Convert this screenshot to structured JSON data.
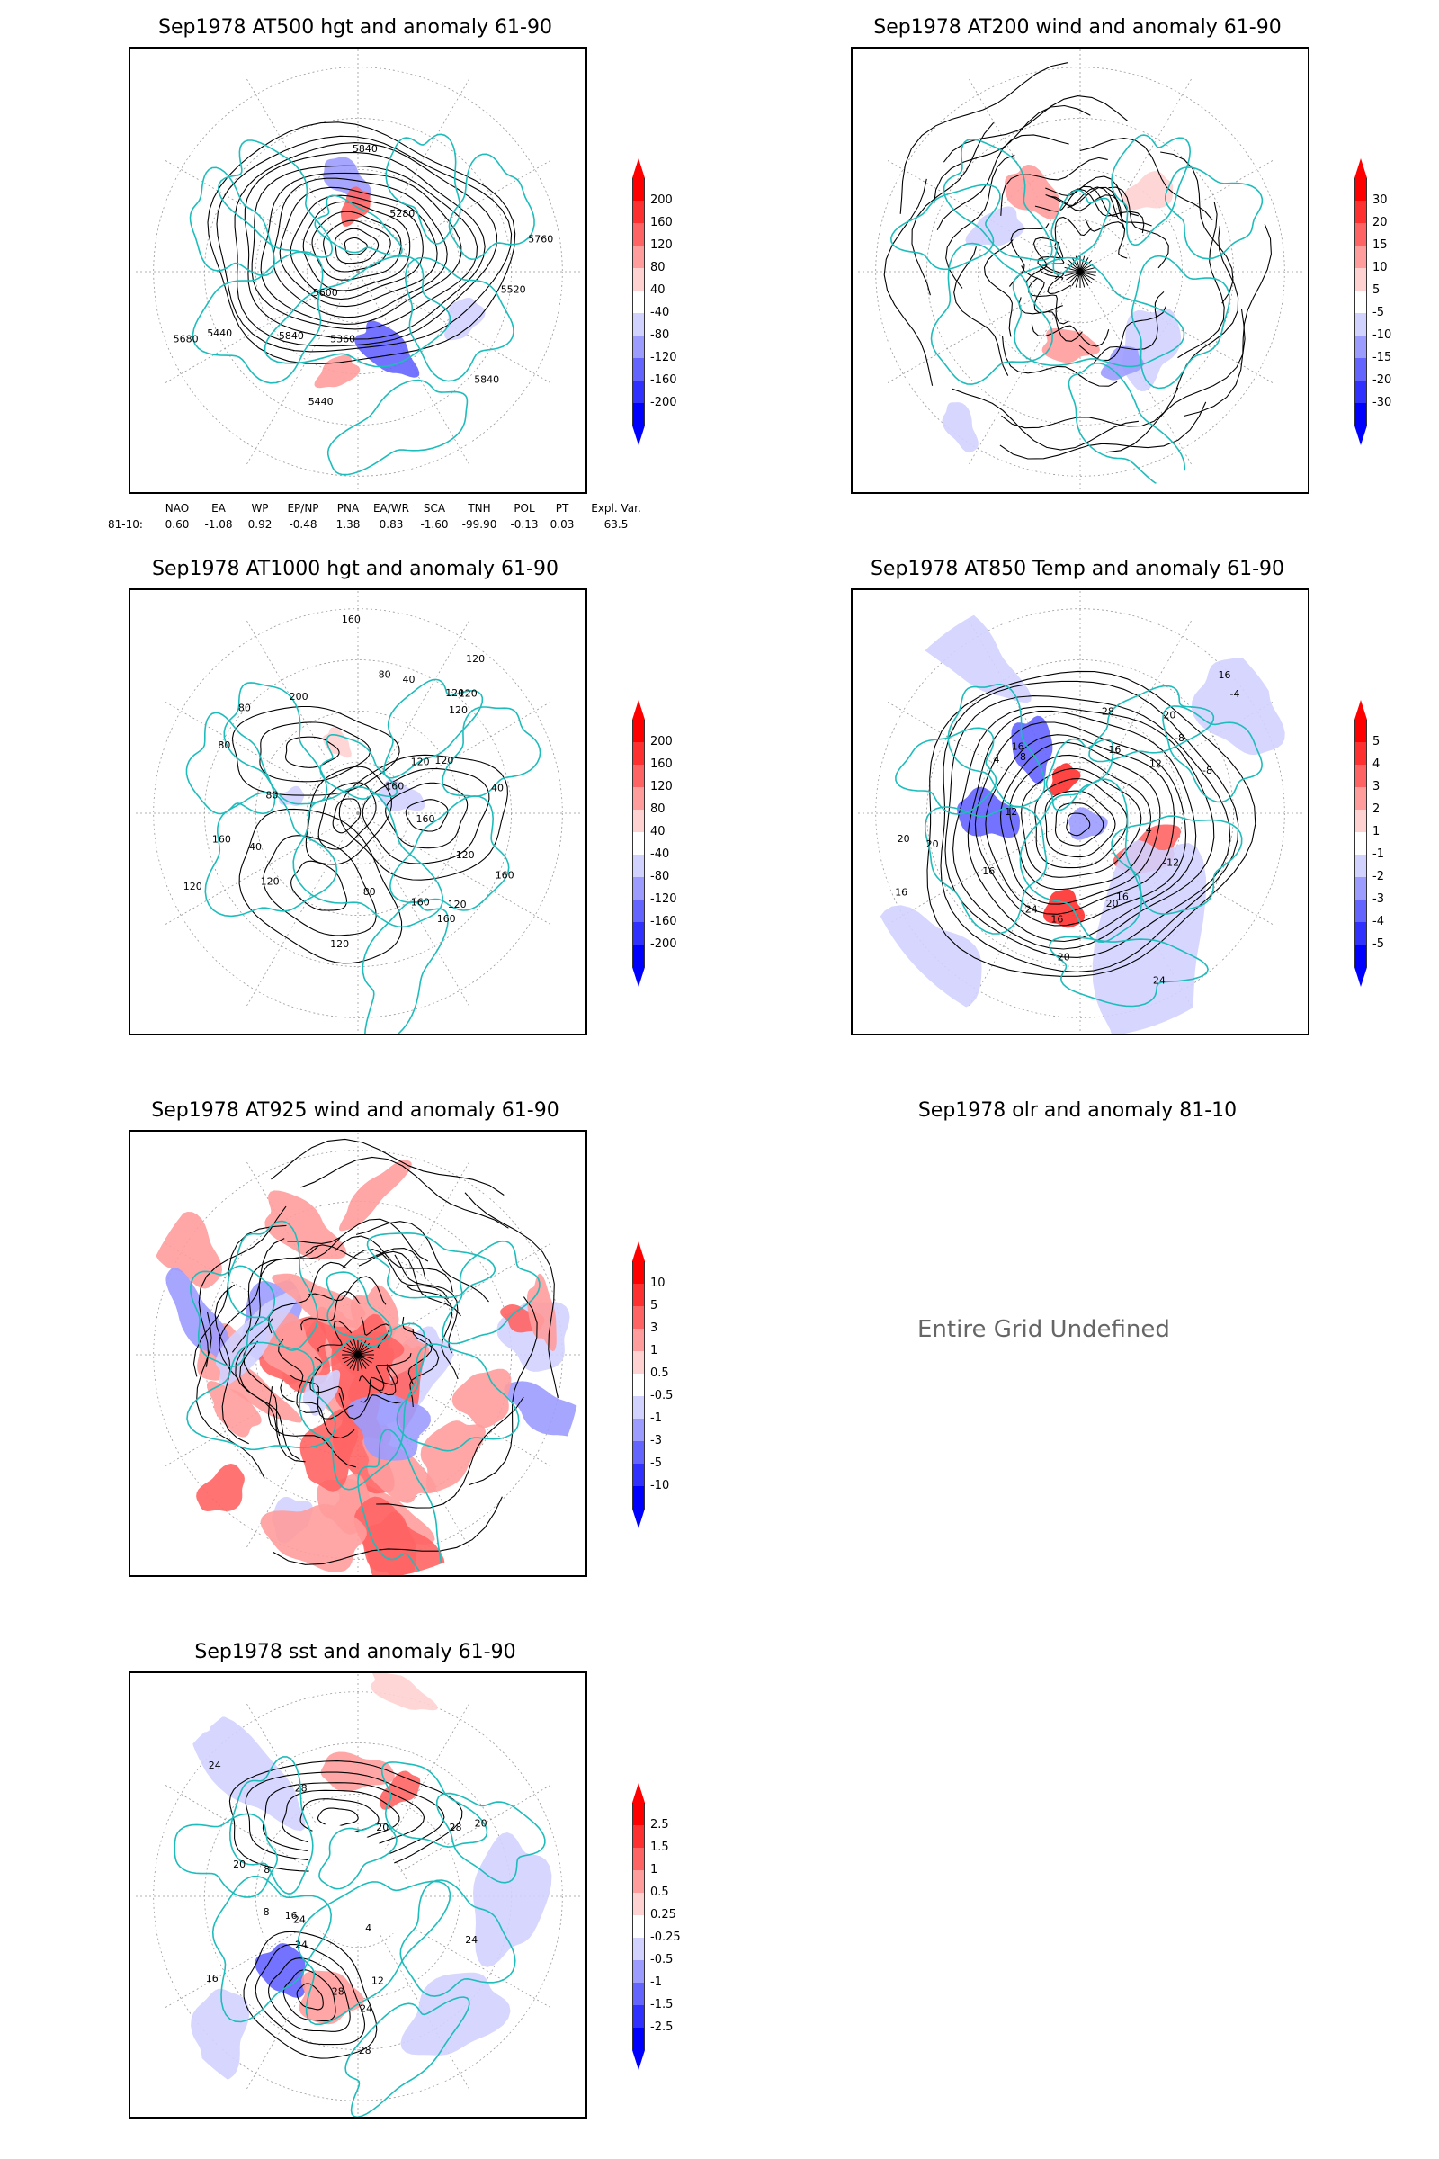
{
  "colors": {
    "coast": "#1fbcbc",
    "contour": "#000000",
    "grid": "#999999",
    "scale_red": [
      "#ff0000",
      "#ff3030",
      "#ff6464",
      "#ff9c9c",
      "#ffd2d2"
    ],
    "scale_blue": [
      "#d2d2ff",
      "#9c9cff",
      "#6464ff",
      "#3030ff",
      "#0000ff"
    ]
  },
  "panels": [
    {
      "id": "at500",
      "title": "Sep1978 AT500 hgt and anomaly 61-90",
      "colorbar": [
        "200",
        "160",
        "120",
        "80",
        "40",
        "-40",
        "-80",
        "-120",
        "-160",
        "-200"
      ],
      "contour_labels": [
        "5440",
        "5280",
        "5360",
        "5440",
        "5840",
        "5840",
        "5520",
        "5600",
        "5680",
        "5760",
        "5840"
      ]
    },
    {
      "id": "at200",
      "title": "Sep1978 AT200 wind and anomaly 61-90",
      "colorbar": [
        "30",
        "20",
        "15",
        "10",
        "5",
        "-5",
        "-10",
        "-15",
        "-20",
        "-30"
      ],
      "contour_labels": []
    },
    {
      "id": "at1000",
      "title": "Sep1978 AT1000 hgt and anomaly 61-90",
      "colorbar": [
        "200",
        "160",
        "120",
        "80",
        "40",
        "-40",
        "-80",
        "-120",
        "-160",
        "-200"
      ],
      "contour_labels": [
        "120",
        "80",
        "80",
        "160",
        "120",
        "160",
        "40",
        "120",
        "160",
        "80",
        "160",
        "80",
        "120",
        "40",
        "40",
        "160",
        "120",
        "120",
        "160",
        "120",
        "200",
        "160",
        "120",
        "80",
        "120",
        "120",
        "120"
      ]
    },
    {
      "id": "at850",
      "title": "Sep1978 AT850 Temp and anomaly 61-90",
      "colorbar": [
        "5",
        "4",
        "3",
        "2",
        "1",
        "-1",
        "-2",
        "-3",
        "-4",
        "-5"
      ],
      "contour_labels": [
        "16",
        "12",
        "16",
        "4",
        "-8",
        "20",
        "-8",
        "-12",
        "-4",
        "20",
        "16",
        "20",
        "24",
        "4",
        "8",
        "12",
        "16",
        "20",
        "24",
        "28",
        "16",
        "16",
        "20",
        "16"
      ]
    },
    {
      "id": "at925",
      "title": "Sep1978 AT925 wind and anomaly 61-90",
      "colorbar": [
        "10",
        "5",
        "3",
        "1",
        "0.5",
        "-0.5",
        "-1",
        "-3",
        "-5",
        "-10"
      ],
      "contour_labels": []
    },
    {
      "id": "olr",
      "title": "Sep1978 olr and anomaly 81-10",
      "message": "Entire Grid Undefined"
    },
    {
      "id": "sst",
      "title": "Sep1978 sst and anomaly 61-90",
      "colorbar": [
        "2.5",
        "1.5",
        "1",
        "0.5",
        "0.25",
        "-0.25",
        "-0.5",
        "-1",
        "-1.5",
        "-2.5"
      ],
      "contour_labels": [
        "24",
        "28",
        "24",
        "16",
        "20",
        "24",
        "28",
        "8",
        "4",
        "8",
        "12",
        "20",
        "16",
        "28",
        "24",
        "28",
        "20",
        "24"
      ]
    }
  ],
  "teleconnection": {
    "headers": [
      "NAO",
      "EA",
      "WP",
      "EP/NP",
      "PNA",
      "EA/WR",
      "SCA",
      "TNH",
      "POL",
      "PT",
      "Expl. Var."
    ],
    "row_label": "81-10:",
    "values": [
      "0.60",
      "-1.08",
      "0.92",
      "-0.48",
      "1.38",
      "0.83",
      "-1.60",
      "-99.90",
      "-0.13",
      "0.03",
      "63.5"
    ]
  }
}
